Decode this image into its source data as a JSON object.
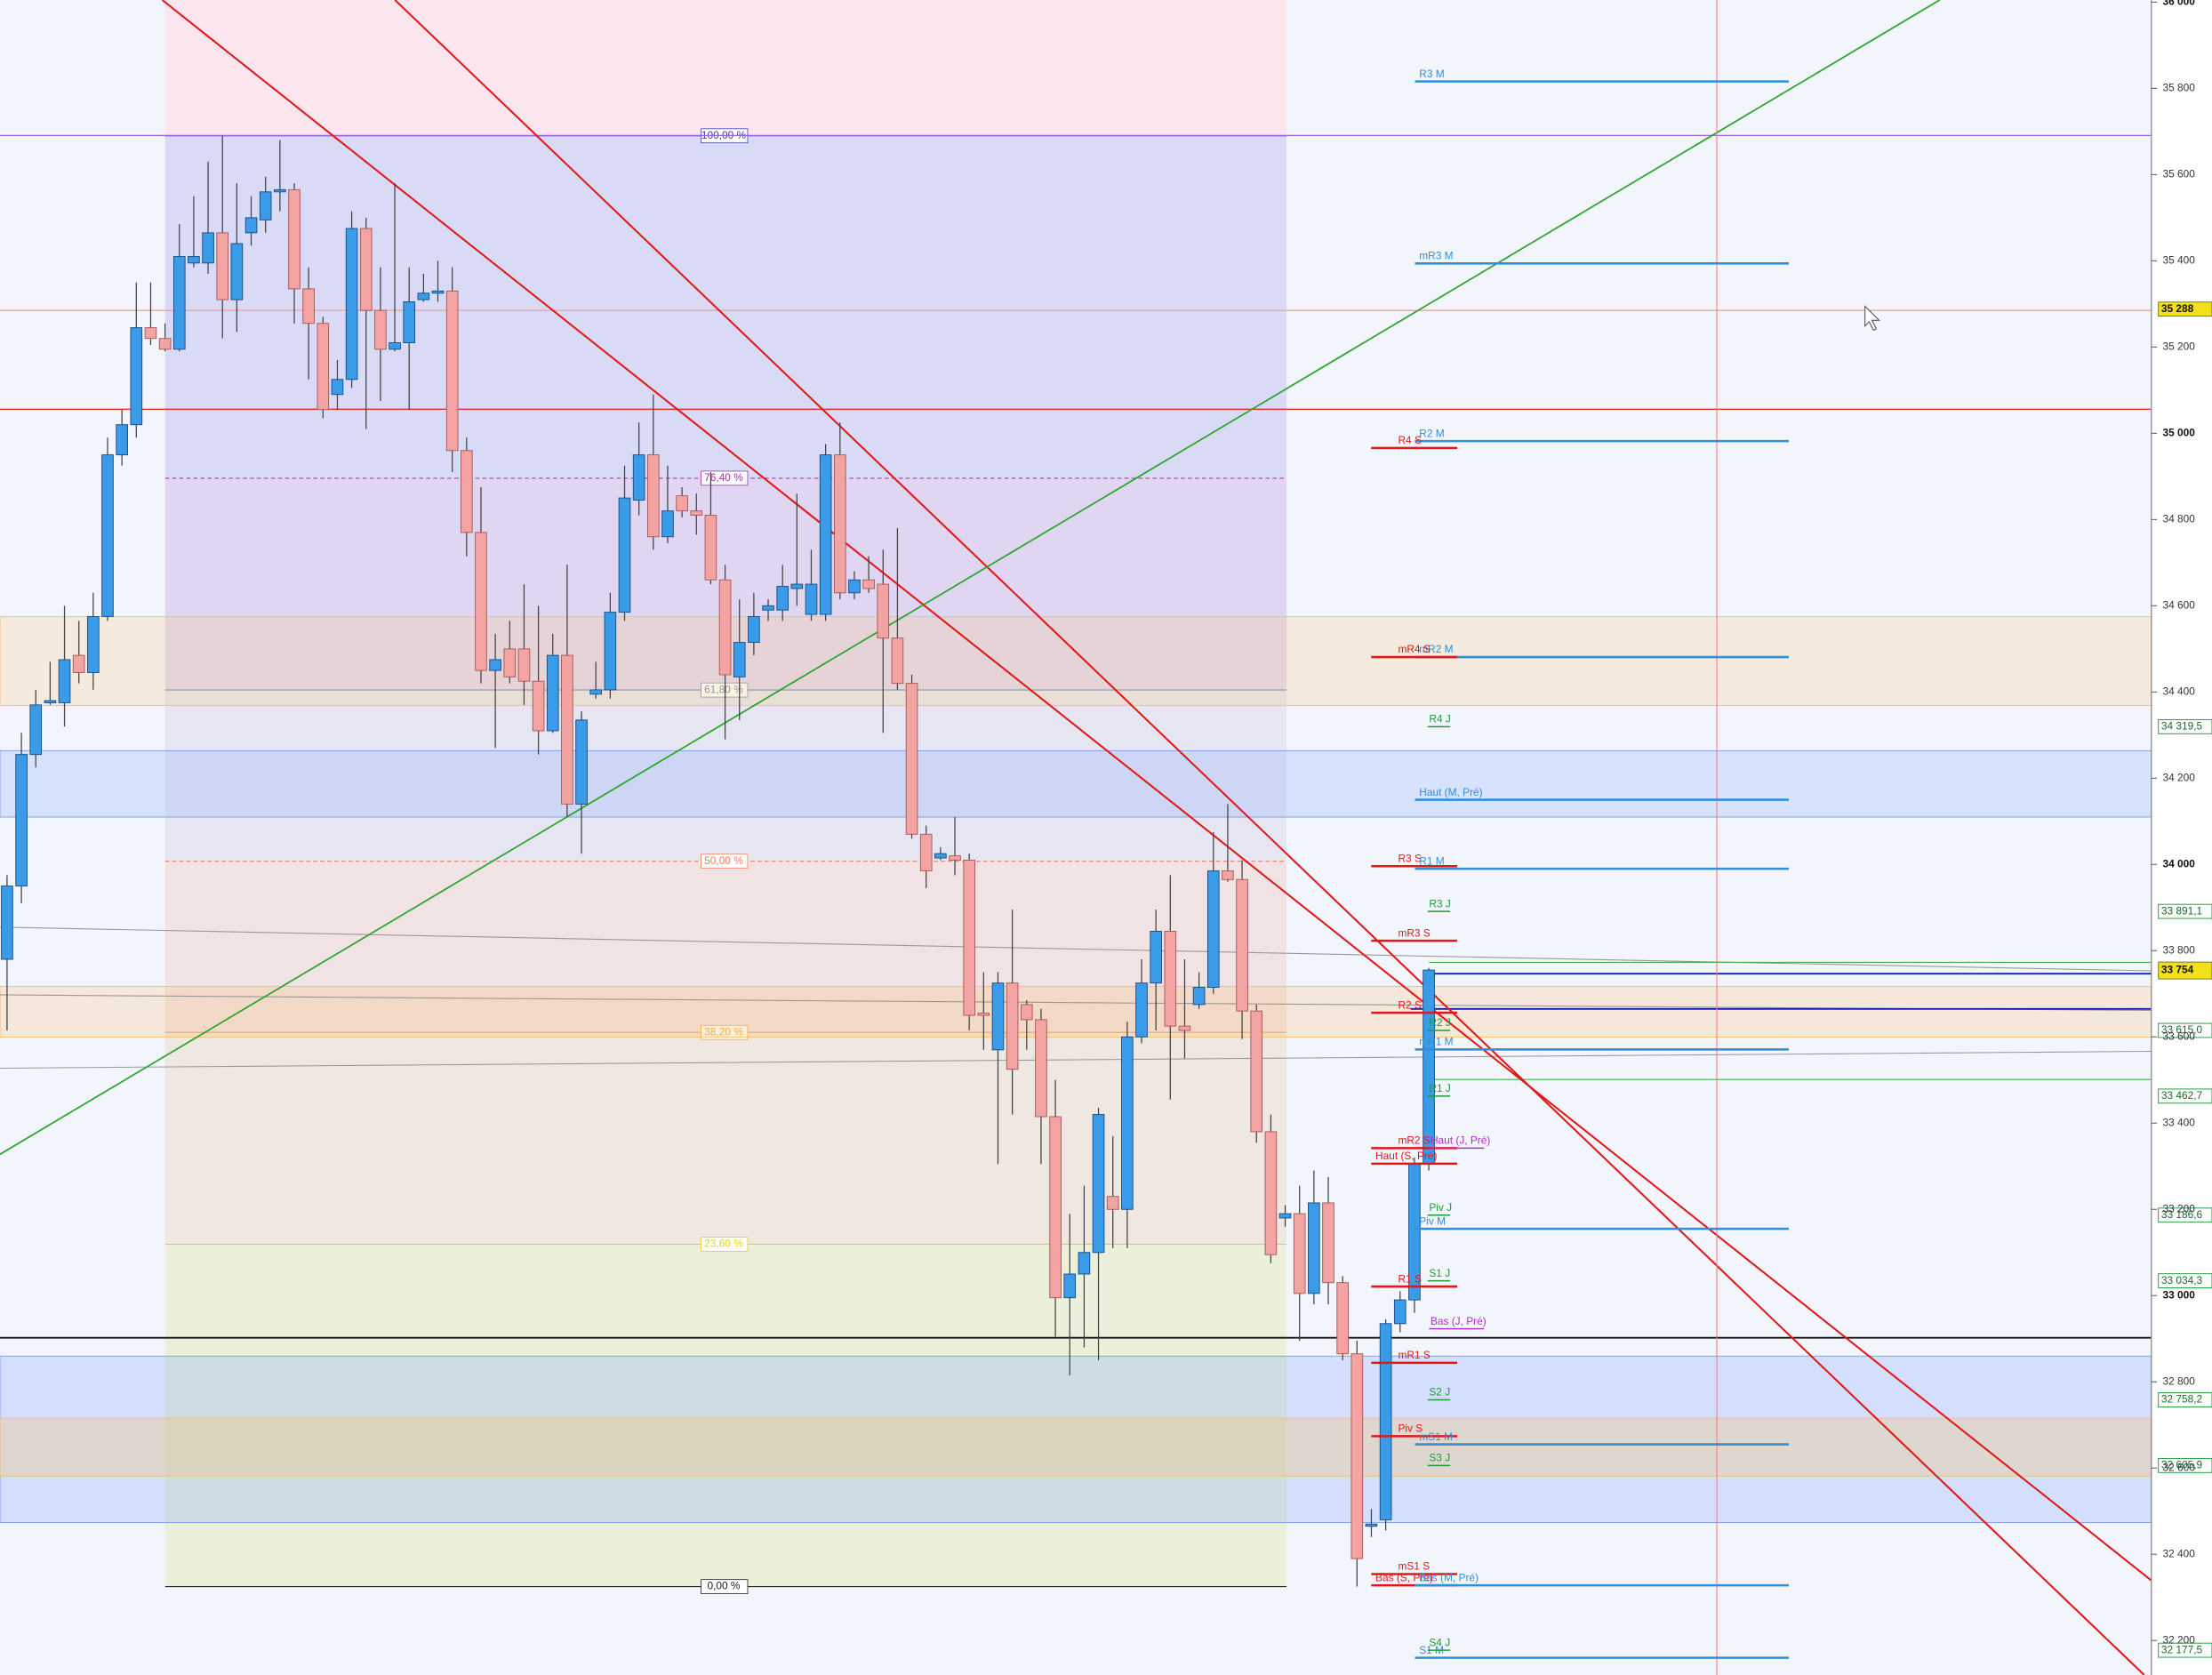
{
  "chart_data": {
    "type": "candlestick",
    "open": [
      33780,
      33950,
      34255,
      34375,
      34375,
      34485,
      34445,
      34575,
      34950,
      35020,
      35245,
      35220,
      35195,
      35395,
      35395,
      35465,
      35310,
      35465,
      35495,
      35560,
      35565,
      35335,
      35255,
      35090,
      35125,
      35475,
      35285,
      35195,
      35210,
      35310,
      35325,
      35330,
      34960,
      34770,
      34450,
      34500,
      34500,
      34425,
      34310,
      34485,
      34140,
      34395,
      34405,
      34585,
      34845,
      34950,
      34760,
      34855,
      34820,
      34810,
      34660,
      34435,
      34515,
      34590,
      34590,
      34640,
      34580,
      34580,
      34950,
      34630,
      34660,
      34650,
      34525,
      34420,
      34070,
      34015,
      34020,
      34010,
      33655,
      33570,
      33725,
      33675,
      33640,
      33415,
      32995,
      33050,
      33100,
      33230,
      33200,
      33600,
      33725,
      33845,
      33625,
      33675,
      33715,
      33985,
      33965,
      33660,
      33380,
      33180,
      33190,
      33005,
      33215,
      33030,
      32865,
      32465,
      32480,
      32935,
      32990,
      33305
    ],
    "high": [
      33975,
      34305,
      34405,
      34470,
      34600,
      34565,
      34630,
      34990,
      35055,
      35350,
      35350,
      35255,
      35485,
      35550,
      35630,
      35690,
      35580,
      35550,
      35595,
      35680,
      35580,
      35385,
      35270,
      35170,
      35515,
      35500,
      35385,
      35580,
      35385,
      35370,
      35400,
      35385,
      34990,
      34875,
      34535,
      34565,
      34650,
      34600,
      34535,
      34695,
      34355,
      34470,
      34630,
      34925,
      35025,
      35090,
      34925,
      34875,
      34860,
      34910,
      34695,
      34615,
      34630,
      34615,
      34695,
      34860,
      34730,
      34975,
      35025,
      34680,
      34715,
      34730,
      34780,
      34440,
      34090,
      34040,
      34110,
      34025,
      33750,
      33750,
      33895,
      33685,
      33665,
      33500,
      33190,
      33255,
      33435,
      33370,
      33635,
      33780,
      33895,
      33975,
      33780,
      33750,
      34075,
      34140,
      34010,
      33675,
      33420,
      33210,
      33255,
      33290,
      33275,
      33045,
      32895,
      32505,
      32945,
      33010,
      33320,
      33760
    ],
    "low": [
      33615,
      33910,
      34225,
      34370,
      34320,
      34420,
      34405,
      34565,
      34925,
      34990,
      35205,
      35190,
      35190,
      35385,
      35370,
      35220,
      35235,
      35435,
      35465,
      35515,
      35255,
      35125,
      35035,
      35055,
      35105,
      35010,
      35075,
      35190,
      35055,
      35305,
      35305,
      34910,
      34715,
      34420,
      34270,
      34420,
      34370,
      34255,
      34305,
      34110,
      34025,
      34385,
      34385,
      34565,
      34810,
      34730,
      34745,
      34805,
      34765,
      34650,
      34290,
      34335,
      34485,
      34565,
      34565,
      34600,
      34565,
      34565,
      34615,
      34615,
      34630,
      34305,
      34405,
      34060,
      33945,
      34010,
      33975,
      33615,
      33570,
      33305,
      33420,
      33570,
      33305,
      32905,
      32815,
      32880,
      32850,
      33110,
      33110,
      33585,
      33615,
      33455,
      33550,
      33665,
      33700,
      33960,
      33595,
      33355,
      33075,
      33160,
      32895,
      32980,
      32980,
      32850,
      32325,
      32440,
      32455,
      32915,
      32960,
      33290
    ],
    "close": [
      33950,
      34255,
      34370,
      34380,
      34475,
      34445,
      34575,
      34950,
      35020,
      35245,
      35220,
      35195,
      35410,
      35410,
      35465,
      35310,
      35440,
      35500,
      35560,
      35565,
      35335,
      35255,
      35055,
      35125,
      35475,
      35285,
      35195,
      35210,
      35305,
      35325,
      35330,
      34960,
      34770,
      34450,
      34475,
      34435,
      34425,
      34310,
      34485,
      34140,
      34335,
      34405,
      34585,
      34850,
      34950,
      34760,
      34820,
      34820,
      34810,
      34660,
      34440,
      34515,
      34575,
      34600,
      34645,
      34650,
      34650,
      34950,
      34630,
      34660,
      34640,
      34525,
      34420,
      34070,
      33985,
      34025,
      34010,
      33650,
      33650,
      33725,
      33525,
      33640,
      33415,
      32995,
      33050,
      33100,
      33420,
      33200,
      33600,
      33725,
      33845,
      33625,
      33615,
      33715,
      33985,
      33965,
      33660,
      33380,
      33095,
      33190,
      33005,
      33215,
      33030,
      32865,
      32390,
      32470,
      32935,
      32990,
      33305,
      33755
    ],
    "up_color": "#3a9be8",
    "down_color": "#f4a3a3",
    "ylim": [
      32120,
      36005
    ],
    "yticks": [
      {
        "value": 32200,
        "label": "32 200"
      },
      {
        "value": 32400,
        "label": "32 400"
      },
      {
        "value": 32600,
        "label": "32 600"
      },
      {
        "value": 32800,
        "label": "32 800"
      },
      {
        "value": 33000,
        "label": "33 000"
      },
      {
        "value": 33200,
        "label": "33 200"
      },
      {
        "value": 33400,
        "label": "33 400"
      },
      {
        "value": 33600,
        "label": "33 600"
      },
      {
        "value": 33800,
        "label": "33 800"
      },
      {
        "value": 34000,
        "label": "34 000"
      },
      {
        "value": 34200,
        "label": "34 200"
      },
      {
        "value": 34400,
        "label": "34 400"
      },
      {
        "value": 34600,
        "label": "34 600"
      },
      {
        "value": 34800,
        "label": "34 800"
      },
      {
        "value": 35000,
        "label": "35 000"
      },
      {
        "value": 35200,
        "label": "35 200"
      },
      {
        "value": 35400,
        "label": "35 400"
      },
      {
        "value": 35600,
        "label": "35 600"
      },
      {
        "value": 35800,
        "label": "35 800"
      },
      {
        "value": 36000,
        "label": "36 000"
      }
    ],
    "price_tags": [
      {
        "value": 35288,
        "label": "35 288",
        "color": "#f2e01a"
      },
      {
        "value": 33754,
        "label": "33 754",
        "color": "#f2e01a"
      }
    ],
    "fibonacci": {
      "high": 35690,
      "low": 32325,
      "levels": [
        {
          "value": 100,
          "label": "100,00 %",
          "color": "#3b3ba8",
          "band": "#d9dbf6"
        },
        {
          "value": 76.4,
          "label": "76,40 %",
          "color": "#a030a0",
          "band": "#e0d6f2"
        },
        {
          "value": 61.8,
          "label": "61,80 %",
          "color": "#6a8ab8",
          "band": "#e6e6f2"
        },
        {
          "value": 50,
          "label": "50,00 %",
          "color": "#f08060",
          "band": "#f1e2e4"
        },
        {
          "value": 38.2,
          "label": "38,20 %",
          "color": "#f0a040",
          "band": "#eee7e2"
        },
        {
          "value": 23.6,
          "label": "23,60 %",
          "color": "#e8d020",
          "band": "#ebf0da"
        },
        {
          "value": 0,
          "label": "0,00 %",
          "color": "#222222"
        }
      ]
    },
    "levels": [
      {
        "label": "R3 M",
        "value": 35816,
        "color": "#2f8fd8"
      },
      {
        "label": "mR3 M",
        "value": 35394,
        "color": "#2f8fd8"
      },
      {
        "label": "R2 M",
        "value": 34982,
        "color": "#2f8fd8"
      },
      {
        "label": "R4 S",
        "value": 34966,
        "color": "#e01818"
      },
      {
        "label": "mR2 M",
        "value": 34481,
        "color": "#2f8fd8"
      },
      {
        "label": "mR4 S",
        "value": 34481,
        "color": "#e01818"
      },
      {
        "label": "R4 J",
        "value": 34319.5,
        "color": "#1f9a3a",
        "tag": "34 319,5"
      },
      {
        "label": "Haut (M, Pré)",
        "value": 34150,
        "color": "#2f8fd8"
      },
      {
        "label": "R3 S",
        "value": 33996,
        "color": "#e01818"
      },
      {
        "label": "R1 M",
        "value": 33990,
        "color": "#2f8fd8"
      },
      {
        "label": "R3 J",
        "value": 33891.1,
        "color": "#1f9a3a",
        "tag": "33 891,1"
      },
      {
        "label": "mR3 S",
        "value": 33823,
        "color": "#e01818"
      },
      {
        "label": "R2 S",
        "value": 33656,
        "color": "#e01818"
      },
      {
        "label": "R2 J",
        "value": 33615,
        "color": "#1f9a3a",
        "tag": "33 615,0"
      },
      {
        "label": "mR1 M",
        "value": 33571,
        "color": "#2f8fd8"
      },
      {
        "label": "R1 J",
        "value": 33462.7,
        "color": "#1f9a3a",
        "tag": "33 462,7"
      },
      {
        "label": "mR2 S",
        "value": 33342,
        "color": "#e01818"
      },
      {
        "label": "Haut (J, Pré)",
        "value": 33342,
        "color": "#b02cc8"
      },
      {
        "label": "Haut (S, Pré)",
        "value": 33306,
        "color": "#e01818"
      },
      {
        "label": "Piv J",
        "value": 33186.6,
        "color": "#1f9a3a",
        "tag": "33 186,6"
      },
      {
        "label": "Piv M",
        "value": 33155,
        "color": "#2f8fd8"
      },
      {
        "label": "S1 J",
        "value": 33034.3,
        "color": "#1f9a3a",
        "tag": "33 034,3"
      },
      {
        "label": "R1 S",
        "value": 33021,
        "color": "#e01818"
      },
      {
        "label": "Bas (J, Pré)",
        "value": 32923,
        "color": "#b02cc8"
      },
      {
        "label": "mR1 S",
        "value": 32844,
        "color": "#e01818"
      },
      {
        "label": "S2 J",
        "value": 32758.2,
        "color": "#1f9a3a",
        "tag": "32 758,2"
      },
      {
        "label": "Piv S",
        "value": 32674,
        "color": "#e01818"
      },
      {
        "label": "mS1 M",
        "value": 32655,
        "color": "#2f8fd8"
      },
      {
        "label": "S3 J",
        "value": 32605.9,
        "color": "#1f9a3a",
        "tag": "32 605,9"
      },
      {
        "label": "mS1 S",
        "value": 32354,
        "color": "#e01818"
      },
      {
        "label": "Bas (S, Pré)",
        "value": 32328,
        "color": "#e01818"
      },
      {
        "label": "Bas (M, Pré)",
        "value": 32328,
        "color": "#2f8fd8"
      },
      {
        "label": "S1 M",
        "value": 32160,
        "color": "#2f8fd8"
      },
      {
        "label": "S4 J",
        "value": 32177.5,
        "color": "#1f9a3a",
        "tag": "32 177,5"
      }
    ]
  }
}
